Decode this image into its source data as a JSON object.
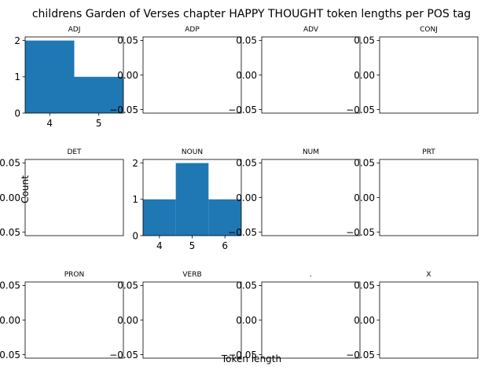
{
  "figure": {
    "title": "childrens Garden of Verses chapter HAPPY THOUGHT token lengths per POS tag",
    "xlabel": "Token length",
    "ylabel": "Count"
  },
  "chart_data": [
    {
      "type": "bar",
      "title": "ADJ",
      "bins": [
        [
          3.5,
          4.5
        ],
        [
          4.5,
          5.5
        ]
      ],
      "values": [
        2,
        1
      ],
      "xlim": [
        3.5,
        5.5
      ],
      "ylim": [
        0,
        2.1
      ],
      "xticks": [
        4,
        5
      ],
      "xtick_labels": [
        "4",
        "5"
      ],
      "yticks": [
        0,
        1,
        2
      ],
      "ytick_labels": [
        "0",
        "1",
        "2"
      ],
      "color": "#1f77b4"
    },
    {
      "type": "bar",
      "title": "ADP",
      "bins": [],
      "values": [],
      "ylim": [
        -0.055,
        0.055
      ],
      "yticks": [
        -0.05,
        0,
        0.05
      ],
      "ytick_labels": [
        "−0.05",
        "0.00",
        "0.05"
      ]
    },
    {
      "type": "bar",
      "title": "ADV",
      "bins": [],
      "values": [],
      "ylim": [
        -0.055,
        0.055
      ],
      "yticks": [
        -0.05,
        0,
        0.05
      ],
      "ytick_labels": [
        "−0.05",
        "0.00",
        "0.05"
      ]
    },
    {
      "type": "bar",
      "title": "CONJ",
      "bins": [],
      "values": [],
      "ylim": [
        -0.055,
        0.055
      ],
      "yticks": [
        -0.05,
        0,
        0.05
      ],
      "ytick_labels": [
        "−0.05",
        "0.00",
        "0.05"
      ]
    },
    {
      "type": "bar",
      "title": "DET",
      "bins": [],
      "values": [],
      "ylim": [
        -0.055,
        0.055
      ],
      "yticks": [
        -0.05,
        0,
        0.05
      ],
      "ytick_labels": [
        "−0.05",
        "0.00",
        "0.05"
      ]
    },
    {
      "type": "bar",
      "title": "NOUN",
      "bins": [
        [
          3.5,
          4.5
        ],
        [
          4.5,
          5.5
        ],
        [
          5.5,
          6.5
        ]
      ],
      "values": [
        1,
        2,
        1
      ],
      "xlim": [
        3.5,
        6.5
      ],
      "ylim": [
        0,
        2.1
      ],
      "xticks": [
        4,
        5,
        6
      ],
      "xtick_labels": [
        "4",
        "5",
        "6"
      ],
      "yticks": [
        0,
        1,
        2
      ],
      "ytick_labels": [
        "0",
        "1",
        "2"
      ],
      "color": "#1f77b4"
    },
    {
      "type": "bar",
      "title": "NUM",
      "bins": [],
      "values": [],
      "ylim": [
        -0.055,
        0.055
      ],
      "yticks": [
        -0.05,
        0,
        0.05
      ],
      "ytick_labels": [
        "−0.05",
        "0.00",
        "0.05"
      ]
    },
    {
      "type": "bar",
      "title": "PRT",
      "bins": [],
      "values": [],
      "ylim": [
        -0.055,
        0.055
      ],
      "yticks": [
        -0.05,
        0,
        0.05
      ],
      "ytick_labels": [
        "−0.05",
        "0.00",
        "0.05"
      ]
    },
    {
      "type": "bar",
      "title": "PRON",
      "bins": [],
      "values": [],
      "ylim": [
        -0.055,
        0.055
      ],
      "yticks": [
        -0.05,
        0,
        0.05
      ],
      "ytick_labels": [
        "−0.05",
        "0.00",
        "0.05"
      ]
    },
    {
      "type": "bar",
      "title": "VERB",
      "bins": [],
      "values": [],
      "ylim": [
        -0.055,
        0.055
      ],
      "yticks": [
        -0.05,
        0,
        0.05
      ],
      "ytick_labels": [
        "−0.05",
        "0.00",
        "0.05"
      ]
    },
    {
      "type": "bar",
      "title": ".",
      "bins": [],
      "values": [],
      "ylim": [
        -0.055,
        0.055
      ],
      "yticks": [
        -0.05,
        0,
        0.05
      ],
      "ytick_labels": [
        "−0.05",
        "0.00",
        "0.05"
      ]
    },
    {
      "type": "bar",
      "title": "X",
      "bins": [],
      "values": [],
      "ylim": [
        -0.055,
        0.055
      ],
      "yticks": [
        -0.05,
        0,
        0.05
      ],
      "ytick_labels": [
        "−0.05",
        "0.00",
        "0.05"
      ]
    }
  ]
}
